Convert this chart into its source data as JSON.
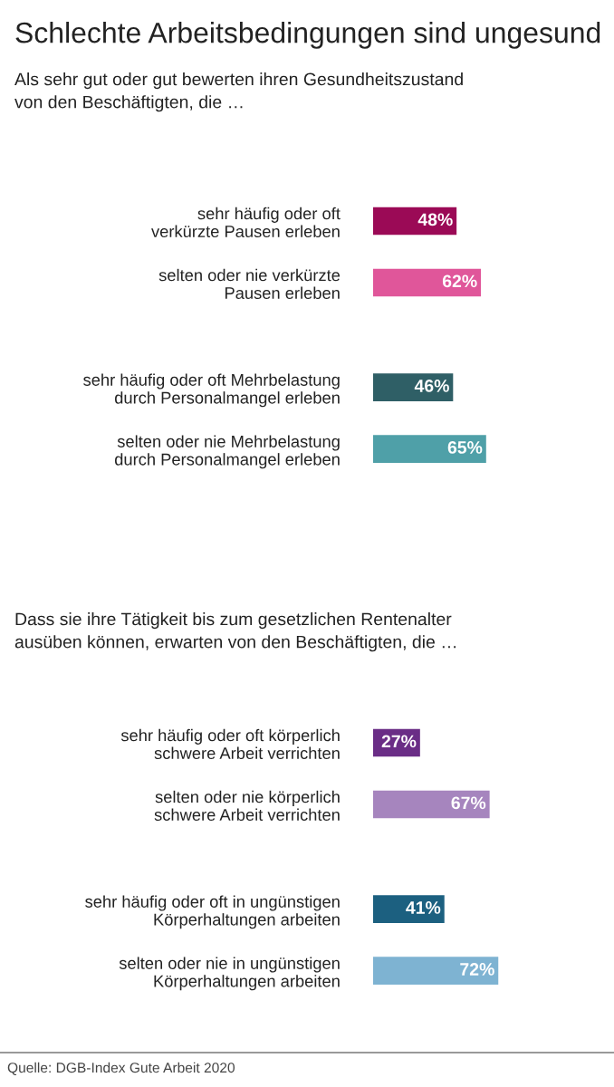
{
  "chart_data": [
    {
      "type": "bar",
      "orientation": "horizontal",
      "title": "Schlechte Arbeitsbedingungen sind ungesund",
      "subtitle": "Als sehr gut oder gut bewerten ihren Gesundheitszustand\nvon den Beschäftigten, die …",
      "categories": [
        "sehr häufig oder oft\nverkürzte Pausen erleben",
        "selten oder nie verkürzte\nPausen erleben",
        "sehr häufig oder oft Mehrbelastung\ndurch Personalmangel erleben",
        "selten oder nie Mehrbelastung\ndurch Personalmangel erleben"
      ],
      "values": [
        48,
        62,
        46,
        65
      ],
      "value_labels": [
        "48%",
        "62%",
        "46%",
        "65%"
      ],
      "colors": [
        "#9b0a56",
        "#e0569a",
        "#2f5f66",
        "#4fa0a8"
      ]
    },
    {
      "type": "bar",
      "orientation": "horizontal",
      "subtitle": "Dass sie ihre Tätigkeit bis zum gesetzlichen Rentenalter\nausüben können, erwarten von den Beschäftigten, die …",
      "categories": [
        "sehr häufig oder oft körperlich\nschwere Arbeit verrichten",
        "selten oder nie körperlich\nschwere Arbeit verrichten",
        "sehr häufig oder oft in ungünstigen\nKörperhaltungen arbeiten",
        "selten oder nie in ungünstigen\nKörperhaltungen arbeiten"
      ],
      "values": [
        27,
        67,
        41,
        72
      ],
      "value_labels": [
        "27%",
        "67%",
        "41%",
        "72%"
      ],
      "colors": [
        "#6a2d86",
        "#a685be",
        "#1c6080",
        "#7eb3d2"
      ],
      "annotations": [
        "Quelle: DGB-Index Gute Arbeit 2020"
      ]
    }
  ]
}
